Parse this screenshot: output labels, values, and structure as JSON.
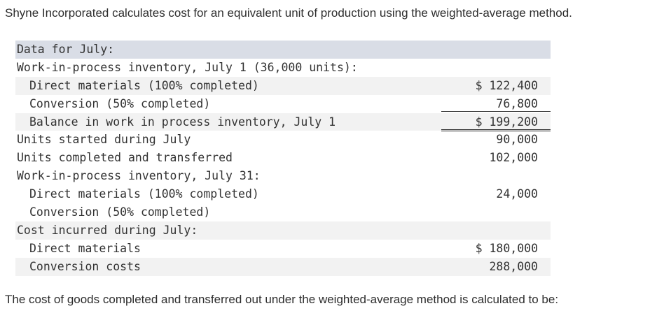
{
  "intro": "Shyne Incorporated calculates cost for an equivalent unit of production using the weighted-average method.",
  "table": {
    "header": "Data for July:",
    "rows": [
      {
        "label": "Work-in-process inventory, July 1 (36,000 units):",
        "value": ""
      },
      {
        "label": "Direct materials (100% completed)",
        "value": "$ 122,400"
      },
      {
        "label": "Conversion (50% completed)",
        "value": "76,800"
      },
      {
        "label": "Balance in work in process inventory, July 1",
        "value": "$ 199,200"
      },
      {
        "label": "Units started during July",
        "value": "90,000"
      },
      {
        "label": "Units completed and transferred",
        "value": "102,000"
      },
      {
        "label": "Work-in-process inventory, July 31:",
        "value": ""
      },
      {
        "label": "Direct materials (100% completed)",
        "value": "24,000"
      },
      {
        "label": "Conversion (50% completed)",
        "value": ""
      },
      {
        "label": "Cost incurred during July:",
        "value": ""
      },
      {
        "label": "Direct materials",
        "value": "$ 180,000"
      },
      {
        "label": "Conversion costs",
        "value": "288,000"
      }
    ]
  },
  "question": "The cost of goods completed and transferred out under the weighted-average method is calculated to be:"
}
